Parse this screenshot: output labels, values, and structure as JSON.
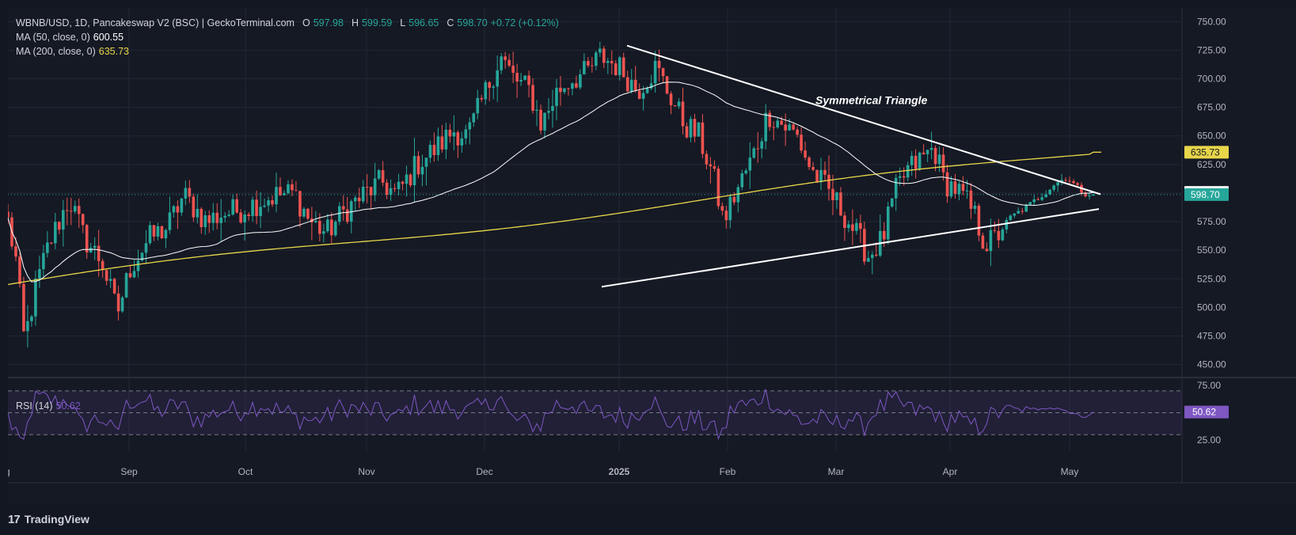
{
  "header": {
    "symbol": "WBNB/USD, 1D, Pancakeswap V2 (BSC) | GeckoTerminal.com",
    "open_label": "O",
    "open": "597.98",
    "high_label": "H",
    "high": "599.59",
    "low_label": "L",
    "low": "596.65",
    "close_label": "C",
    "close": "598.70",
    "change": "+0.72 (+0.12%)",
    "ma50_label": "MA (50, close, 0)",
    "ma50_value": "600.55",
    "ma200_label": "MA (200, close, 0)",
    "ma200_value": "635.73"
  },
  "rsi": {
    "label": "RSI (14)",
    "value": "50.62"
  },
  "annotation": "Symmetrical Triangle",
  "branding": "TradingView",
  "colors": {
    "up": "#26a69a",
    "down": "#ef5350",
    "ma50": "#ffffff",
    "ma200": "#e8d54a",
    "rsi": "#7e57c2",
    "bg": "#151924"
  },
  "chart_data": [
    {
      "type": "candlestick",
      "title": "WBNB/USD, 1D, Pancakeswap V2 (BSC)",
      "x_labels": [
        "Aug",
        "Sep",
        "Oct",
        "Nov",
        "Dec",
        "2025",
        "Feb",
        "Mar",
        "Apr",
        "May"
      ],
      "y_ticks": [
        "750.00",
        "725.00",
        "700.00",
        "675.00",
        "650.00",
        "625.00",
        "600.00",
        "575.00",
        "550.00",
        "525.00",
        "500.00",
        "475.00",
        "450.00"
      ],
      "ylim": [
        440,
        762
      ],
      "price_labels": [
        {
          "name": "ma200",
          "value": 635.73,
          "text": "635.73"
        },
        {
          "name": "ma50",
          "value": 600.55,
          "text": "600.55"
        },
        {
          "name": "last",
          "value": 598.7,
          "text": "598.70"
        }
      ],
      "close_series_approx": [
        {
          "month": "Aug",
          "value": 545
        },
        {
          "month": "Aug-mid",
          "value": 470
        },
        {
          "month": "Aug-late",
          "value": 560
        },
        {
          "month": "Sep",
          "value": 540
        },
        {
          "month": "Sep-mid",
          "value": 500
        },
        {
          "month": "Sep-late",
          "value": 600
        },
        {
          "month": "Oct",
          "value": 565
        },
        {
          "month": "Oct-mid",
          "value": 590
        },
        {
          "month": "Nov",
          "value": 560
        },
        {
          "month": "Nov-mid",
          "value": 620
        },
        {
          "month": "Dec",
          "value": 700
        },
        {
          "month": "Dec-mid",
          "value": 690
        },
        {
          "month": "2025",
          "value": 710
        },
        {
          "month": "Jan-mid",
          "value": 700
        },
        {
          "month": "Feb",
          "value": 580
        },
        {
          "month": "Feb-mid",
          "value": 660
        },
        {
          "month": "Mar",
          "value": 560
        },
        {
          "month": "Mar-mid",
          "value": 630
        },
        {
          "month": "Apr",
          "value": 570
        },
        {
          "month": "Apr-mid",
          "value": 595
        },
        {
          "month": "May",
          "value": 598.7
        }
      ],
      "indicators": [
        "MA 50 (white)",
        "MA 200 (yellow)"
      ],
      "annotations": [
        "Symmetrical Triangle"
      ]
    },
    {
      "type": "line",
      "title": "RSI (14)",
      "y_ticks": [
        "75.00",
        "25.00"
      ],
      "bands": [
        30,
        50,
        70
      ],
      "ylim": [
        15,
        80
      ],
      "last_value": 50.62
    }
  ]
}
